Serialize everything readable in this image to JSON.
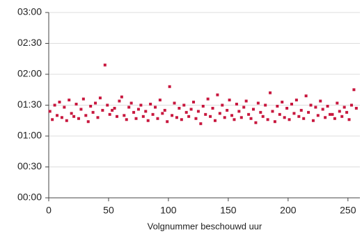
{
  "chart_data": {
    "type": "scatter",
    "x_label": "Volgnummer beschouwd uur",
    "series": [
      {
        "color": "#c8173e",
        "x": [
          1,
          3,
          5,
          7,
          9,
          11,
          13,
          15,
          17,
          19,
          21,
          23,
          25,
          27,
          29,
          31,
          33,
          35,
          37,
          39,
          41,
          43,
          45,
          47,
          49,
          51,
          53,
          55,
          57,
          59,
          61,
          63,
          65,
          67,
          69,
          71,
          73,
          75,
          77,
          79,
          81,
          83,
          85,
          87,
          89,
          91,
          93,
          95,
          97,
          99,
          101,
          103,
          105,
          107,
          109,
          111,
          113,
          115,
          117,
          119,
          121,
          123,
          125,
          127,
          129,
          131,
          133,
          135,
          137,
          139,
          141,
          143,
          145,
          147,
          149,
          151,
          153,
          155,
          157,
          159,
          161,
          163,
          165,
          167,
          169,
          171,
          173,
          175,
          177,
          179,
          181,
          183,
          185,
          187,
          189,
          191,
          193,
          195,
          197,
          199,
          201,
          203,
          205,
          207,
          209,
          211,
          213,
          215,
          217,
          219,
          221,
          223,
          225,
          227,
          229,
          231,
          233,
          235,
          237,
          239,
          241,
          243,
          245,
          247,
          249,
          251,
          253,
          255,
          257
        ],
        "values": [
          84,
          76,
          90,
          80,
          93,
          78,
          88,
          75,
          95,
          82,
          79,
          91,
          77,
          86,
          96,
          80,
          74,
          89,
          83,
          92,
          78,
          97,
          85,
          129,
          90,
          81,
          85,
          87,
          79,
          94,
          98,
          80,
          76,
          88,
          92,
          83,
          77,
          86,
          90,
          79,
          84,
          75,
          91,
          81,
          88,
          77,
          95,
          82,
          85,
          74,
          108,
          80,
          92,
          78,
          87,
          76,
          90,
          83,
          79,
          86,
          93,
          77,
          84,
          72,
          89,
          81,
          96,
          79,
          87,
          75,
          100,
          82,
          90,
          78,
          85,
          95,
          80,
          76,
          91,
          84,
          78,
          88,
          94,
          81,
          77,
          86,
          73,
          92,
          83,
          79,
          90,
          76,
          102,
          84,
          74,
          89,
          81,
          93,
          78,
          87,
          76,
          91,
          82,
          95,
          79,
          85,
          77,
          99,
          83,
          90,
          75,
          88,
          80,
          94,
          86,
          78,
          89,
          81,
          81,
          77,
          92,
          84,
          79,
          88,
          83,
          76,
          90,
          105,
          87
        ]
      }
    ],
    "xlim": [
      0,
      260
    ],
    "xticks": [
      0,
      50,
      100,
      150,
      200,
      250
    ],
    "ylim": [
      0,
      180
    ],
    "yticks": [
      {
        "value": 0,
        "label": "00:00"
      },
      {
        "value": 30,
        "label": "00:30"
      },
      {
        "value": 60,
        "label": "01:00"
      },
      {
        "value": 90,
        "label": "01:30"
      },
      {
        "value": 120,
        "label": "02:00"
      },
      {
        "value": 150,
        "label": "02:30"
      },
      {
        "value": 180,
        "label": "03:00"
      }
    ],
    "grid": true
  }
}
